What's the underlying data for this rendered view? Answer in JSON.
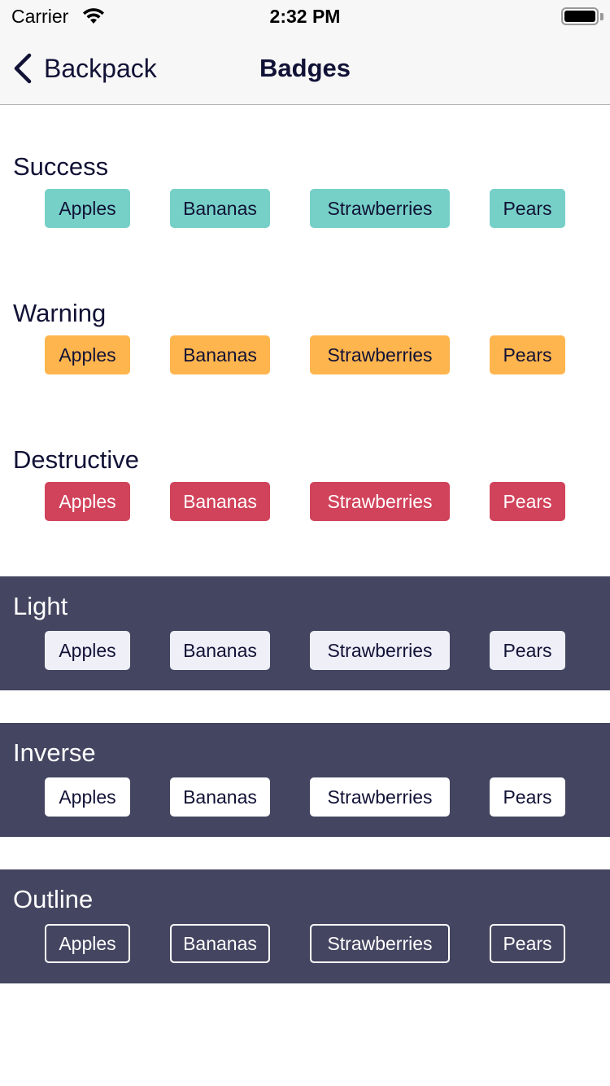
{
  "status_bar": {
    "carrier": "Carrier",
    "time": "2:32 PM"
  },
  "nav": {
    "back_label": "Backpack",
    "title": "Badges"
  },
  "sections": [
    {
      "title": "Success",
      "badges": [
        "Apples",
        "Bananas",
        "Strawberries",
        "Pears"
      ],
      "color": "#76d0c7"
    },
    {
      "title": "Warning",
      "badges": [
        "Apples",
        "Bananas",
        "Strawberries",
        "Pears"
      ],
      "color": "#ffb54d"
    },
    {
      "title": "Destructive",
      "badges": [
        "Apples",
        "Bananas",
        "Strawberries",
        "Pears"
      ],
      "color": "#d1435b"
    },
    {
      "title": "Light",
      "badges": [
        "Apples",
        "Bananas",
        "Strawberries",
        "Pears"
      ],
      "color": "#eeeff7"
    },
    {
      "title": "Inverse",
      "badges": [
        "Apples",
        "Bananas",
        "Strawberries",
        "Pears"
      ],
      "color": "#ffffff"
    },
    {
      "title": "Outline",
      "badges": [
        "Apples",
        "Bananas",
        "Strawberries",
        "Pears"
      ],
      "color": "#ffffff"
    }
  ],
  "colors": {
    "dark_background": "#444560",
    "text_primary": "#111236"
  }
}
